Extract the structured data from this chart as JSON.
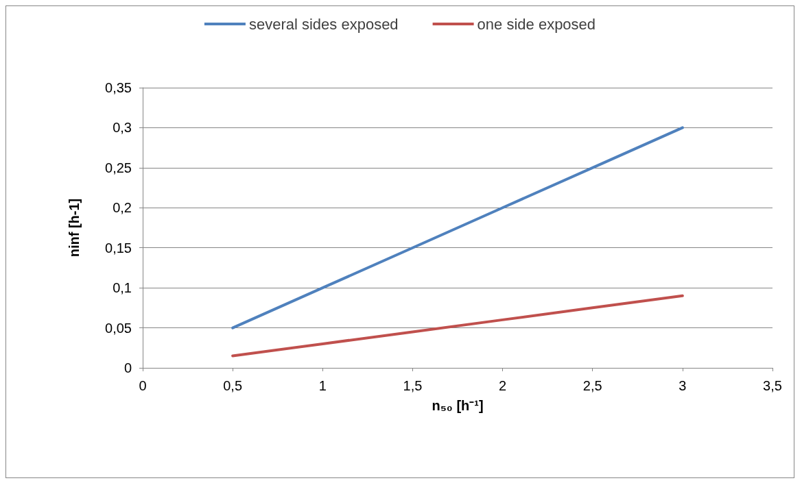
{
  "chart_data": {
    "type": "line",
    "xlabel": "n₅₀ [h⁻¹]",
    "ylabel": "ninf [h-1]",
    "x": [
      0.5,
      1,
      1.5,
      2,
      2.5,
      3
    ],
    "series": [
      {
        "name": "several sides exposed",
        "color": "#4f81bd",
        "values": [
          0.05,
          0.1,
          0.15,
          0.2,
          0.25,
          0.3
        ]
      },
      {
        "name": "one side exposed",
        "color": "#c0504d",
        "values": [
          0.015,
          0.03,
          0.045,
          0.06,
          0.075,
          0.09
        ]
      }
    ],
    "xlim": [
      0,
      3.5
    ],
    "xticks": [
      0,
      {
        "value": 0.5,
        "label": "0,5"
      },
      1,
      {
        "value": 1.5,
        "label": "1,5"
      },
      2,
      {
        "value": 2.5,
        "label": "2,5"
      },
      3,
      {
        "value": 3.5,
        "label": "3,5"
      }
    ],
    "ylim": [
      0,
      0.35
    ],
    "yticks": [
      0,
      {
        "value": 0.05,
        "label": "0,05"
      },
      {
        "value": 0.1,
        "label": "0,1"
      },
      {
        "value": 0.15,
        "label": "0,15"
      },
      {
        "value": 0.2,
        "label": "0,2"
      },
      {
        "value": 0.25,
        "label": "0,25"
      },
      {
        "value": 0.3,
        "label": "0,3"
      },
      {
        "value": 0.35,
        "label": "0,35"
      }
    ],
    "grid": "y",
    "legend": "top",
    "marker": "none",
    "line_style": "solid"
  }
}
